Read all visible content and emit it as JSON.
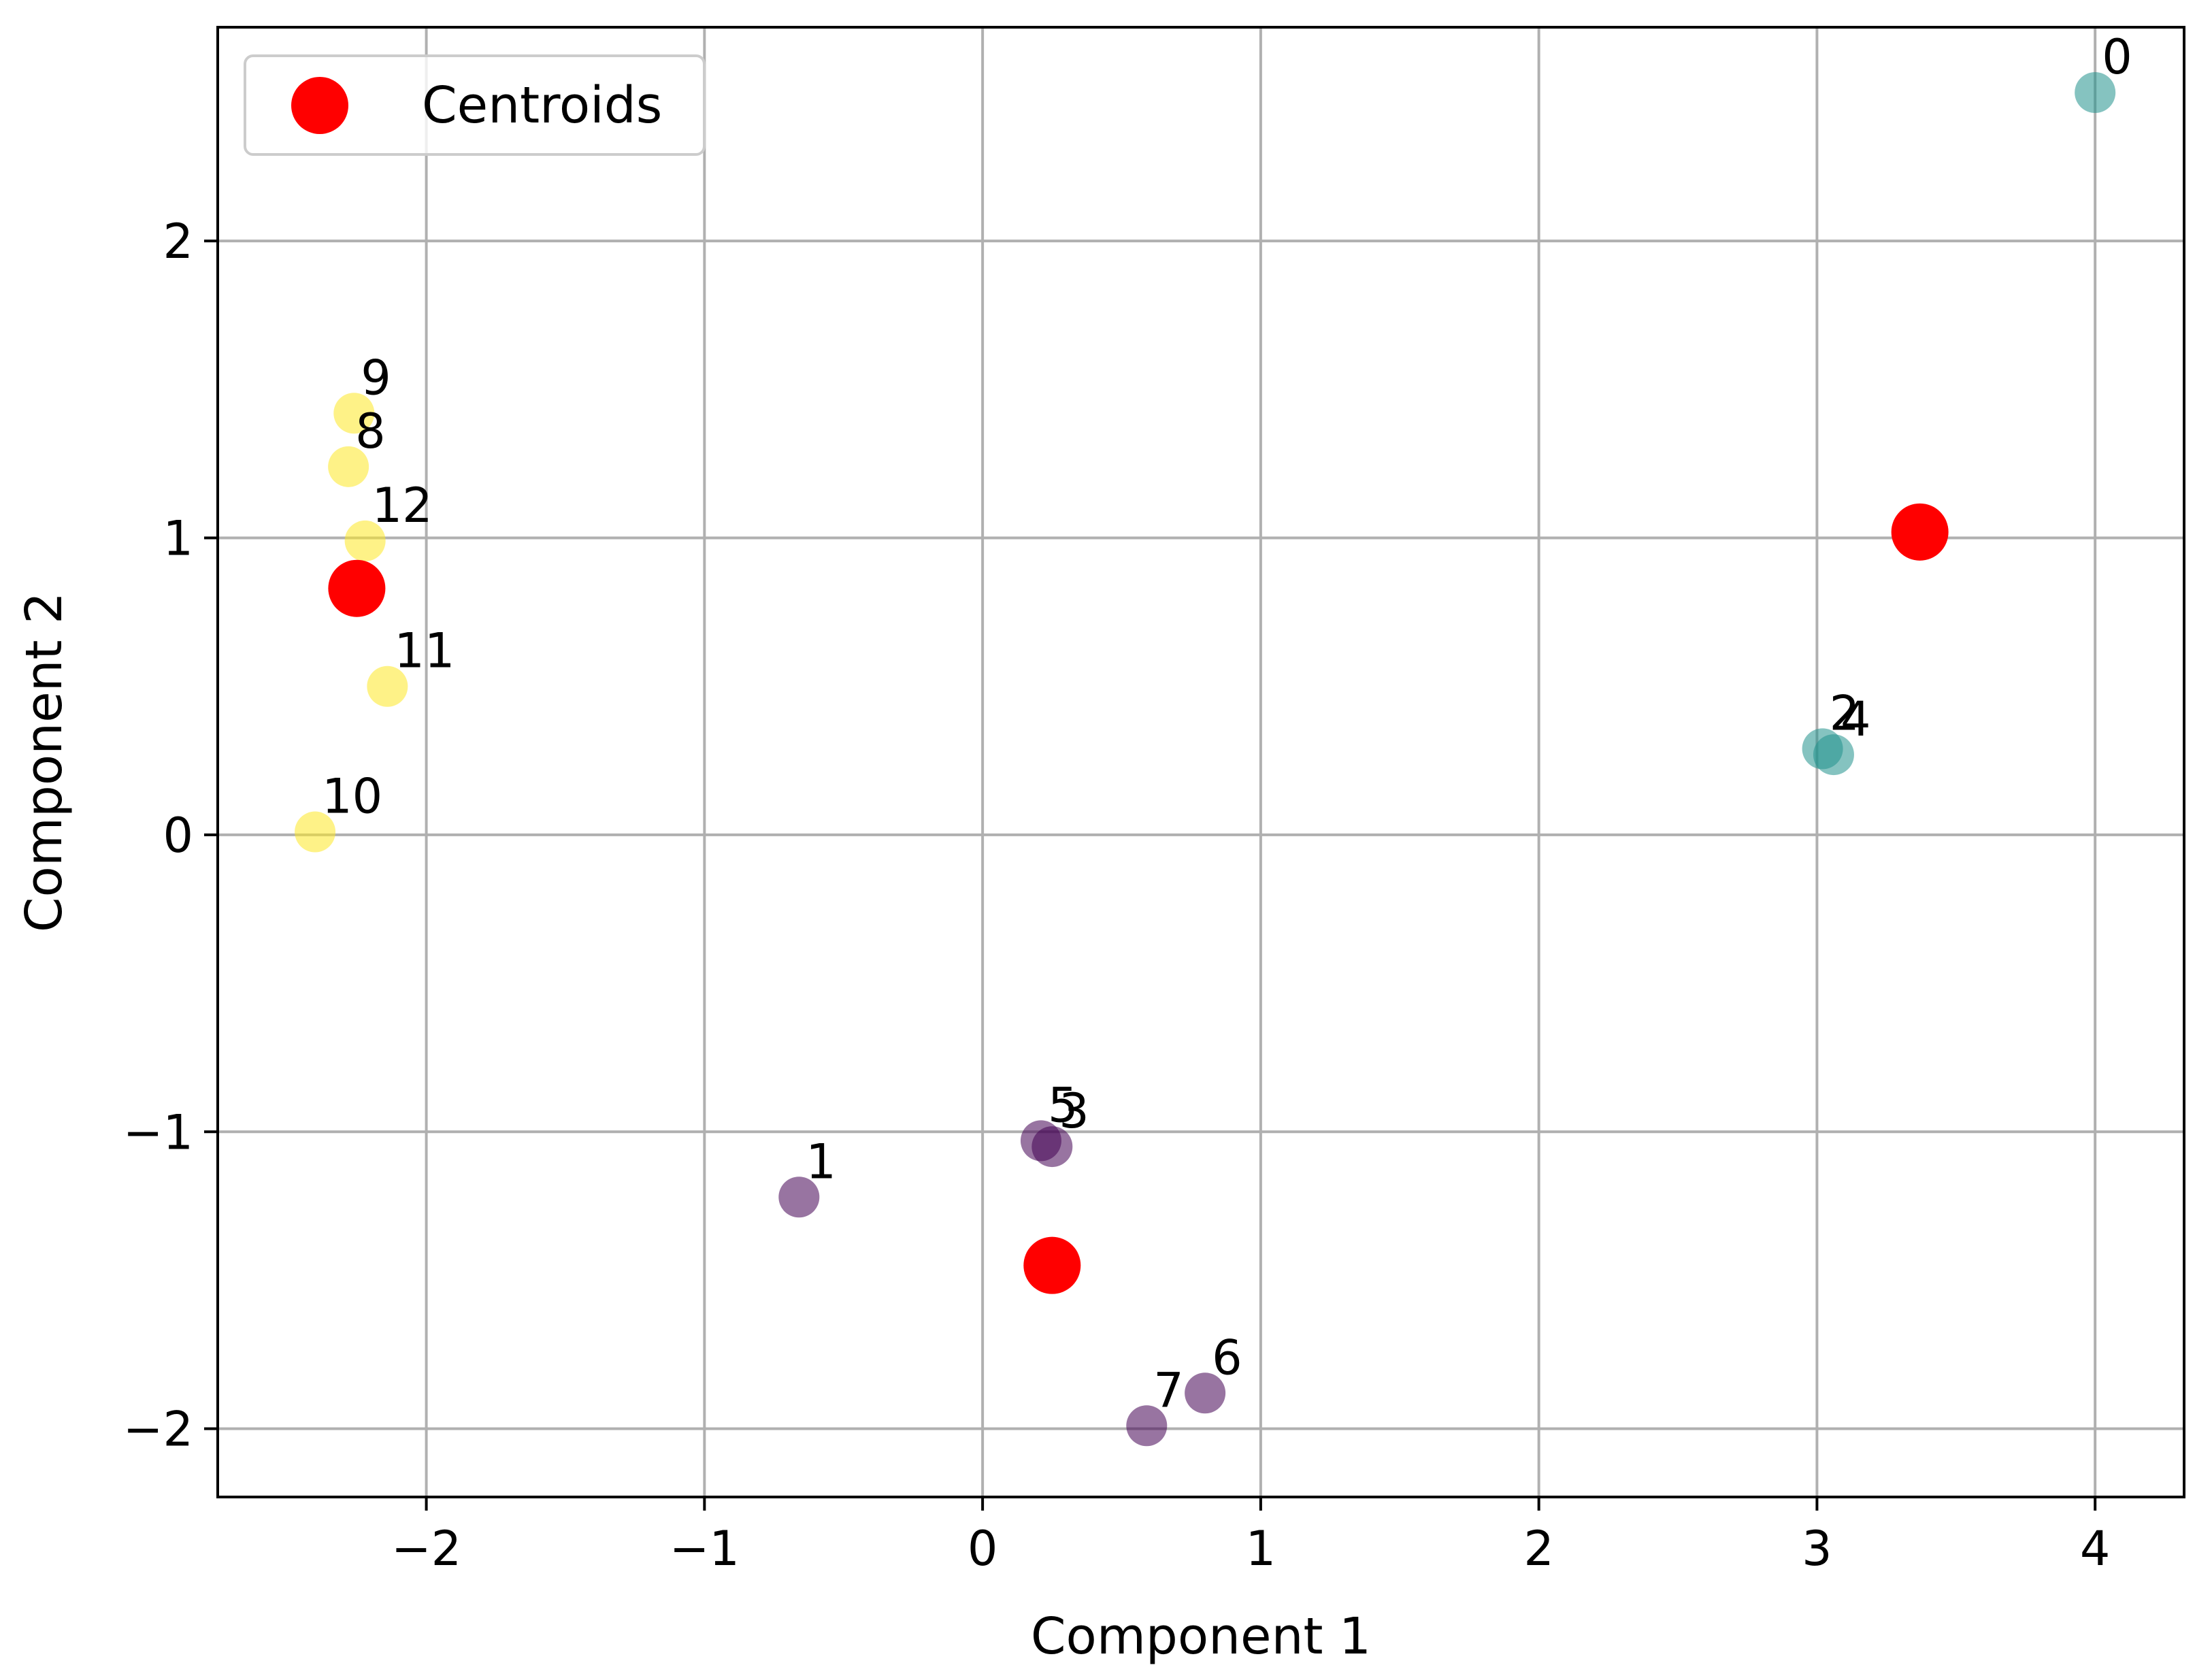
{
  "chart_data": {
    "type": "scatter",
    "title": "",
    "xlabel": "Component 1",
    "ylabel": "Component 2",
    "xlim": [
      -2.75,
      4.32
    ],
    "ylim": [
      -2.23,
      2.72
    ],
    "xticks": [
      -2,
      -1,
      0,
      1,
      2,
      3,
      4
    ],
    "yticks": [
      -2,
      -1,
      0,
      1,
      2
    ],
    "xtick_labels": [
      "−2",
      "−1",
      "0",
      "1",
      "2",
      "3",
      "4"
    ],
    "ytick_labels": [
      "−2",
      "−1",
      "0",
      "1",
      "2"
    ],
    "grid": true,
    "legend_position": "top-left",
    "cluster_colors": [
      "#440154",
      "#21918c",
      "#fde725"
    ],
    "points": [
      {
        "label": "0",
        "x": 4.0,
        "y": 2.5,
        "cluster": 1
      },
      {
        "label": "1",
        "x": -0.66,
        "y": -1.22,
        "cluster": 0
      },
      {
        "label": "2",
        "x": 3.02,
        "y": 0.29,
        "cluster": 1
      },
      {
        "label": "3",
        "x": 0.25,
        "y": -1.05,
        "cluster": 0
      },
      {
        "label": "4",
        "x": 3.06,
        "y": 0.27,
        "cluster": 1
      },
      {
        "label": "5",
        "x": 0.21,
        "y": -1.03,
        "cluster": 0
      },
      {
        "label": "6",
        "x": 0.8,
        "y": -1.88,
        "cluster": 0
      },
      {
        "label": "7",
        "x": 0.59,
        "y": -1.99,
        "cluster": 0
      },
      {
        "label": "8",
        "x": -2.28,
        "y": 1.24,
        "cluster": 2
      },
      {
        "label": "9",
        "x": -2.26,
        "y": 1.42,
        "cluster": 2
      },
      {
        "label": "10",
        "x": -2.4,
        "y": 0.01,
        "cluster": 2
      },
      {
        "label": "11",
        "x": -2.14,
        "y": 0.5,
        "cluster": 2
      },
      {
        "label": "12",
        "x": -2.22,
        "y": 0.99,
        "cluster": 2
      }
    ],
    "centroids": {
      "name": "Centroids",
      "color": "#ff0000",
      "points": [
        {
          "x": 3.37,
          "y": 1.02
        },
        {
          "x": -2.25,
          "y": 0.83
        },
        {
          "x": 0.25,
          "y": -1.45
        }
      ]
    }
  }
}
